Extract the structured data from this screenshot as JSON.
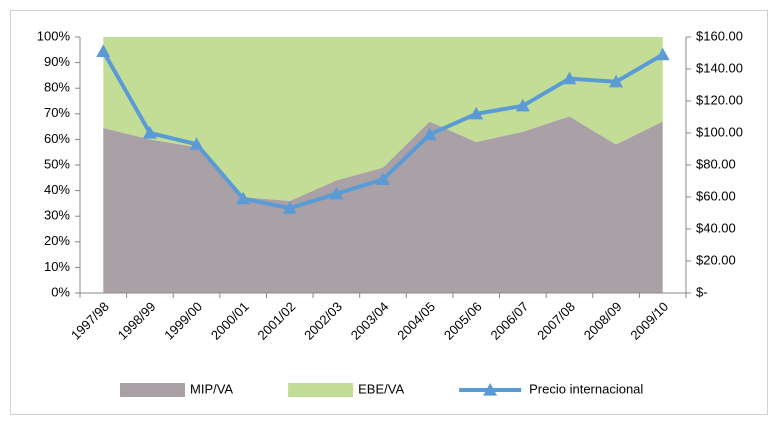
{
  "chart_data": {
    "type": "area",
    "stacked": true,
    "categories": [
      "1997/98",
      "1998/99",
      "1999/00",
      "2000/01",
      "2001/02",
      "2002/03",
      "2003/04",
      "2004/05",
      "2005/06",
      "2006/07",
      "2007/08",
      "2008/09",
      "2009/10"
    ],
    "series": [
      {
        "name": "MIP/VA",
        "type": "area",
        "color": "#aaa1a7",
        "values": [
          64.5,
          60,
          57,
          37.5,
          36,
          44,
          49,
          67,
          59,
          63,
          69,
          58,
          67
        ]
      },
      {
        "name": "EBE/VA",
        "type": "area",
        "color": "#c3dd97",
        "values": [
          35.5,
          40,
          43,
          62.5,
          64,
          56,
          51,
          33,
          41,
          37,
          31,
          42,
          33
        ]
      },
      {
        "name": "Precio internacional",
        "type": "line",
        "axis": "y2",
        "color": "#5b9bd5",
        "values": [
          151,
          100,
          93,
          59,
          53,
          62,
          71,
          99,
          112,
          117,
          134,
          132,
          149
        ]
      }
    ],
    "ylim": [
      0,
      100
    ],
    "yticks": [
      {
        "value": 0,
        "label": "0%"
      },
      {
        "value": 10,
        "label": "10%"
      },
      {
        "value": 20,
        "label": "20%"
      },
      {
        "value": 30,
        "label": "30%"
      },
      {
        "value": 40,
        "label": "40%"
      },
      {
        "value": 50,
        "label": "50%"
      },
      {
        "value": 60,
        "label": "60%"
      },
      {
        "value": 70,
        "label": "70%"
      },
      {
        "value": 80,
        "label": "80%"
      },
      {
        "value": 90,
        "label": "90%"
      },
      {
        "value": 100,
        "label": "100%"
      }
    ],
    "y2lim": [
      0,
      160
    ],
    "y2ticks": [
      {
        "value": 0,
        "label": "$-"
      },
      {
        "value": 20,
        "label": "$20.00"
      },
      {
        "value": 40,
        "label": "$40.00"
      },
      {
        "value": 60,
        "label": "$60.00"
      },
      {
        "value": 80,
        "label": "$80.00"
      },
      {
        "value": 100,
        "label": "$100.00"
      },
      {
        "value": 120,
        "label": "$120.00"
      },
      {
        "value": 140,
        "label": "$140.00"
      },
      {
        "value": 160,
        "label": "$160.00"
      }
    ],
    "legend": "bottom"
  }
}
